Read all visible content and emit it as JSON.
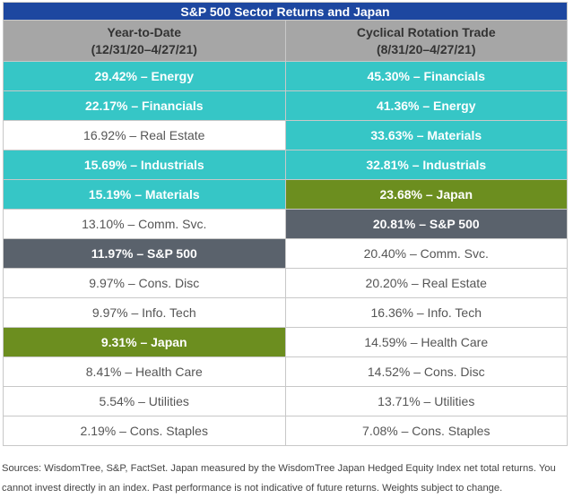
{
  "title": "S&P 500 Sector Returns and Japan",
  "header_color": "#a6a6a6",
  "title_color": "#1d47a0",
  "columns": [
    {
      "line1": "Year-to-Date",
      "line2": "(12/31/20–4/27/21)"
    },
    {
      "line1": "Cyclical Rotation Trade",
      "line2": "(8/31/20–4/27/21)"
    }
  ],
  "rows": [
    [
      {
        "text": "29.42% – Energy",
        "color": "#36c6c6"
      },
      {
        "text": "45.30% – Financials",
        "color": "#36c6c6"
      }
    ],
    [
      {
        "text": "22.17% – Financials",
        "color": "#36c6c6"
      },
      {
        "text": "41.36% – Energy",
        "color": "#36c6c6"
      }
    ],
    [
      {
        "text": "16.92% – Real Estate",
        "color": "#ffffff"
      },
      {
        "text": "33.63% – Materials",
        "color": "#36c6c6"
      }
    ],
    [
      {
        "text": "15.69% – Industrials",
        "color": "#36c6c6"
      },
      {
        "text": "32.81% – Industrials",
        "color": "#36c6c6"
      }
    ],
    [
      {
        "text": "15.19% – Materials",
        "color": "#36c6c6"
      },
      {
        "text": "23.68% – Japan",
        "color": "#6c8e1f"
      }
    ],
    [
      {
        "text": "13.10% – Comm. Svc.",
        "color": "#ffffff"
      },
      {
        "text": "20.81% – S&P 500",
        "color": "#5a626c"
      }
    ],
    [
      {
        "text": "11.97% – S&P 500",
        "color": "#5a626c"
      },
      {
        "text": "20.40% – Comm. Svc.",
        "color": "#ffffff"
      }
    ],
    [
      {
        "text": "9.97% – Cons. Disc",
        "color": "#ffffff"
      },
      {
        "text": "20.20% – Real Estate",
        "color": "#ffffff"
      }
    ],
    [
      {
        "text": "9.97% – Info. Tech",
        "color": "#ffffff"
      },
      {
        "text": "16.36% – Info. Tech",
        "color": "#ffffff"
      }
    ],
    [
      {
        "text": "9.31% – Japan",
        "color": "#6c8e1f"
      },
      {
        "text": "14.59% – Health Care",
        "color": "#ffffff"
      }
    ],
    [
      {
        "text": "8.41% – Health Care",
        "color": "#ffffff"
      },
      {
        "text": "14.52% – Cons. Disc",
        "color": "#ffffff"
      }
    ],
    [
      {
        "text": "5.54% – Utilities",
        "color": "#ffffff"
      },
      {
        "text": "13.71% – Utilities",
        "color": "#ffffff"
      }
    ],
    [
      {
        "text": "2.19% – Cons. Staples",
        "color": "#ffffff"
      },
      {
        "text": "7.08% – Cons. Staples",
        "color": "#ffffff"
      }
    ]
  ],
  "sources": [
    "Sources: WisdomTree, S&P, FactSet. Japan measured by the WisdomTree Japan Hedged Equity Index net total returns. You",
    "cannot invest directly in an index. Past performance is not indicative of future returns. Weights subject to change."
  ]
}
